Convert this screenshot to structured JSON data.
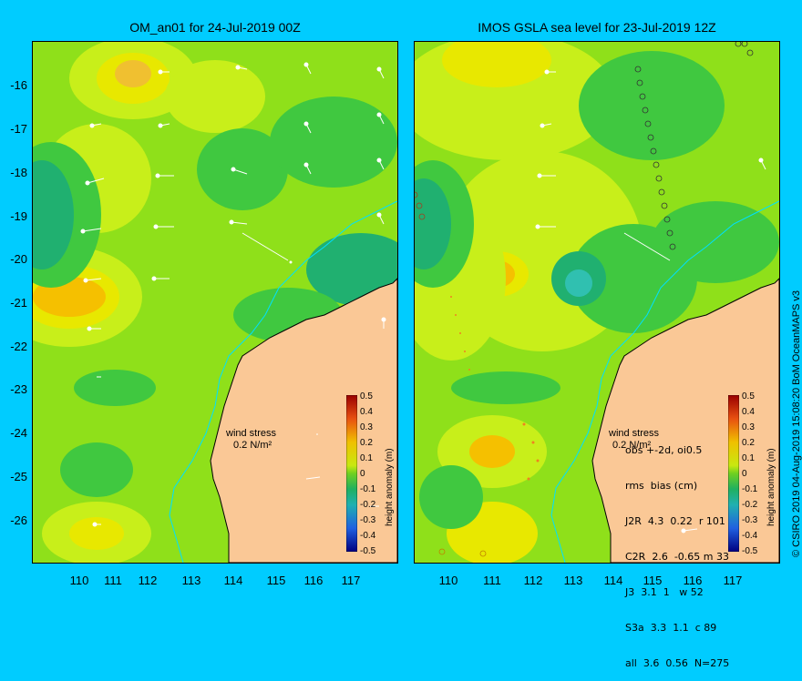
{
  "panels": [
    {
      "title": "OM_an01 for 24-Jul-2019 00Z"
    },
    {
      "title": "IMOS GSLA sea level  for 23-Jul-2019 12Z"
    }
  ],
  "y_ticks": [
    "-16",
    "-17",
    "-18",
    "-19",
    "-20",
    "-21",
    "-22",
    "-23",
    "-24",
    "-25",
    "-26"
  ],
  "x_ticks": [
    "110",
    "111",
    "112",
    "113",
    "114",
    "115",
    "116",
    "117"
  ],
  "colorbar": {
    "title": "height anomaly (m)",
    "ticks": [
      "0.5",
      "0.4",
      "0.3",
      "0.2",
      "0.1",
      "0",
      "-0.1",
      "-0.2",
      "-0.3",
      "-0.4",
      "-0.5"
    ]
  },
  "wind_legend": {
    "line1": "wind stress",
    "line2": "0.2 N/m²"
  },
  "stats": {
    "line1": "obs +-2d, oi0.5",
    "line2": "rms  bias (cm)",
    "rows": [
      {
        "label": "J2R",
        "text": "4.3  0.22  r 101"
      },
      {
        "label": "C2R",
        "text": "2.6  -0.65 m 33"
      },
      {
        "label": "J3",
        "text": "3.1  1   w 52"
      },
      {
        "label": "S3a",
        "text": "3.3  1.1  c 89"
      },
      {
        "label": "all",
        "text": "3.6  0.56  N=275"
      }
    ]
  },
  "credit": "© CSIRO 2019   04-Aug-2019 15:08:20 BoM OceanMAPS v3"
}
